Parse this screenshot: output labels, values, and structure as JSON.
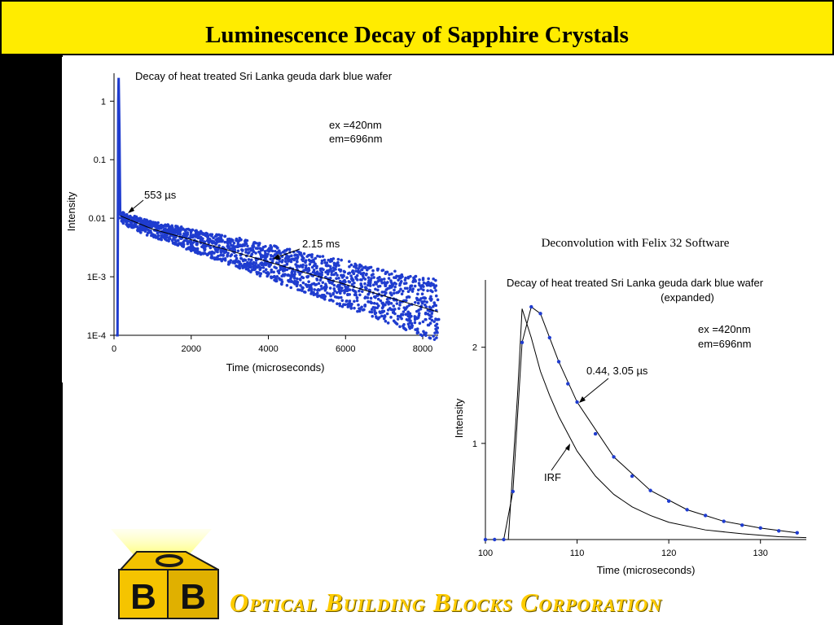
{
  "slide": {
    "title": "Luminescence Decay of Sapphire Crystals",
    "caption": "Deconvolution with Felix 32 Software",
    "company_name": "Optical Building Blocks Corporation",
    "logo_letters": [
      "B",
      "B"
    ],
    "colors": {
      "title_bg": "#ffec00",
      "band": "#000000",
      "accent": "#ffcc00",
      "series": "#1f3ccf"
    }
  },
  "chart_data": [
    {
      "type": "scatter",
      "title": "Decay of heat treated Sri Lanka geuda dark blue wafer",
      "xlabel": "Time (microseconds)",
      "ylabel": "Intensity",
      "x_ticks": [
        "0",
        "2000",
        "4000",
        "6000",
        "8000"
      ],
      "y_ticks": [
        "1",
        "0.1",
        "0.01",
        "1E-3",
        "1E-4"
      ],
      "xlim": [
        0,
        8400
      ],
      "ylim": [
        0.0001,
        3
      ],
      "y_scale": "log",
      "annotations": [
        "ex =420nm",
        "em=696nm",
        "553 µs",
        "2.15 ms"
      ],
      "series": [
        {
          "values": [
            [
              50,
              0.0001
            ],
            [
              90,
              0.0001
            ],
            [
              110,
              1.0
            ],
            [
              120,
              2.5
            ],
            [
              140,
              0.3
            ],
            [
              160,
              0.011
            ],
            [
              300,
              0.0095
            ],
            [
              600,
              0.008
            ],
            [
              1000,
              0.0065
            ],
            [
              2000,
              0.0043
            ],
            [
              3000,
              0.0028
            ],
            [
              4000,
              0.0018
            ],
            [
              5000,
              0.00115
            ],
            [
              6000,
              0.00075
            ],
            [
              7000,
              0.00048
            ],
            [
              8000,
              0.00031
            ],
            [
              8400,
              0.00026
            ]
          ]
        },
        {
          "values": [
            [
              160,
              0.011
            ],
            [
              1000,
              0.0065
            ],
            [
              2000,
              0.0043
            ],
            [
              3000,
              0.0028
            ],
            [
              4000,
              0.0018
            ],
            [
              5000,
              0.00115
            ],
            [
              6000,
              0.00074
            ],
            [
              7000,
              0.00047
            ],
            [
              8000,
              0.0003
            ],
            [
              8400,
              0.00025
            ]
          ]
        }
      ]
    },
    {
      "type": "line",
      "title": "Decay of heat treated Sri Lanka geuda dark blue wafer",
      "subtitle": "(expanded)",
      "xlabel": "Time (microseconds)",
      "ylabel": "Intensity",
      "x_ticks": [
        "100",
        "110",
        "120",
        "130"
      ],
      "y_ticks": [
        "1",
        "2"
      ],
      "xlim": [
        100,
        135
      ],
      "ylim": [
        0,
        2.7
      ],
      "annotations": [
        "ex =420nm",
        "em=696nm",
        "0.44, 3.05 µs",
        "IRF"
      ],
      "series": [
        {
          "values": [
            [
              100,
              0
            ],
            [
              101,
              0
            ],
            [
              102,
              0
            ],
            [
              103,
              0.5
            ],
            [
              104,
              2.05
            ],
            [
              105,
              2.42
            ],
            [
              106,
              2.35
            ],
            [
              107,
              2.1
            ],
            [
              108,
              1.85
            ],
            [
              109,
              1.62
            ],
            [
              110,
              1.43
            ],
            [
              112,
              1.1
            ],
            [
              114,
              0.86
            ],
            [
              116,
              0.66
            ],
            [
              118,
              0.51
            ],
            [
              120,
              0.4
            ],
            [
              122,
              0.31
            ],
            [
              124,
              0.25
            ],
            [
              126,
              0.19
            ],
            [
              128,
              0.15
            ],
            [
              130,
              0.12
            ],
            [
              132,
              0.09
            ],
            [
              134,
              0.07
            ]
          ]
        },
        {
          "values": [
            [
              100,
              0
            ],
            [
              102,
              0
            ],
            [
              102.5,
              0
            ],
            [
              103.5,
              1.5
            ],
            [
              104,
              2.4
            ],
            [
              105,
              2.1
            ],
            [
              106,
              1.75
            ],
            [
              107,
              1.5
            ],
            [
              108,
              1.28
            ],
            [
              110,
              0.92
            ],
            [
              112,
              0.66
            ],
            [
              114,
              0.47
            ],
            [
              116,
              0.34
            ],
            [
              118,
              0.25
            ],
            [
              120,
              0.18
            ],
            [
              124,
              0.1
            ],
            [
              128,
              0.06
            ],
            [
              132,
              0.03
            ],
            [
              135,
              0.02
            ]
          ]
        },
        {
          "values": [
            [
              102,
              0
            ],
            [
              103,
              0.5
            ],
            [
              104,
              2.05
            ],
            [
              105,
              2.42
            ],
            [
              106,
              2.35
            ],
            [
              108,
              1.85
            ],
            [
              110,
              1.43
            ],
            [
              114,
              0.86
            ],
            [
              118,
              0.51
            ],
            [
              122,
              0.31
            ],
            [
              126,
              0.19
            ],
            [
              130,
              0.12
            ],
            [
              134,
              0.07
            ]
          ]
        }
      ]
    }
  ]
}
